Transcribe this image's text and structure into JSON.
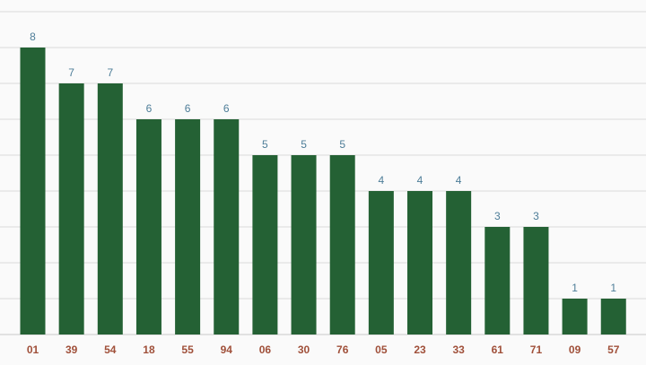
{
  "chart_data": {
    "type": "bar",
    "categories": [
      "01",
      "39",
      "54",
      "18",
      "55",
      "94",
      "06",
      "30",
      "76",
      "05",
      "23",
      "33",
      "61",
      "71",
      "09",
      "57"
    ],
    "values": [
      8,
      7,
      7,
      6,
      6,
      6,
      5,
      5,
      5,
      4,
      4,
      4,
      3,
      3,
      1,
      1
    ],
    "title": "",
    "xlabel": "",
    "ylabel": "",
    "ylim": [
      0,
      9
    ],
    "grid": true,
    "legend": "none"
  },
  "colors": {
    "bar": "#246134",
    "value_label": "#4d7d98",
    "category_label": "#a0503a",
    "background": "#fafafa"
  }
}
